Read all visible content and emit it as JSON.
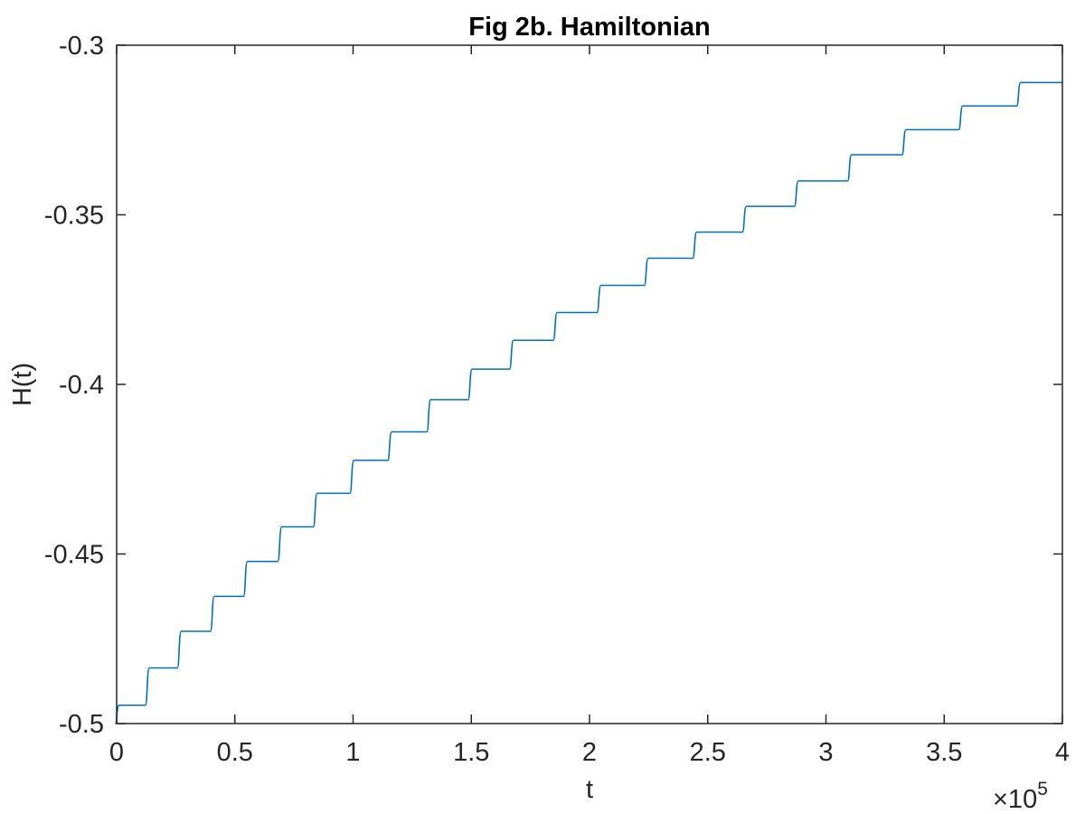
{
  "chart_data": {
    "type": "line",
    "title": "Fig 2b. Hamiltonian",
    "xlabel": "t",
    "ylabel": "H(t)",
    "x_exponent_label": "×10",
    "x_exponent_power": "5",
    "xlim": [
      0,
      4
    ],
    "ylim": [
      -0.5,
      -0.3
    ],
    "x_ticks": [
      0,
      0.5,
      1,
      1.5,
      2,
      2.5,
      3,
      3.5,
      4
    ],
    "x_tick_labels": [
      "0",
      "0.5",
      "1",
      "1.5",
      "2",
      "2.5",
      "3",
      "3.5",
      "4"
    ],
    "y_ticks": [
      -0.5,
      -0.45,
      -0.4,
      -0.35,
      -0.3
    ],
    "y_tick_labels": [
      "-0.5",
      "-0.45",
      "-0.4",
      "-0.35",
      "-0.3"
    ],
    "grid": false,
    "line_color": "#0072BD",
    "series": [
      {
        "name": "",
        "steps": [
          {
            "x": 0.0,
            "y": -0.5
          },
          {
            "x": 0.002,
            "y": -0.4946
          },
          {
            "x": 0.13,
            "y": -0.4836
          },
          {
            "x": 0.265,
            "y": -0.4728
          },
          {
            "x": 0.405,
            "y": -0.4625
          },
          {
            "x": 0.545,
            "y": -0.4522
          },
          {
            "x": 0.69,
            "y": -0.442
          },
          {
            "x": 0.84,
            "y": -0.4321
          },
          {
            "x": 0.995,
            "y": -0.4224
          },
          {
            "x": 1.155,
            "y": -0.414
          },
          {
            "x": 1.32,
            "y": -0.4045
          },
          {
            "x": 1.495,
            "y": -0.3955
          },
          {
            "x": 1.67,
            "y": -0.387
          },
          {
            "x": 1.855,
            "y": -0.3788
          },
          {
            "x": 2.04,
            "y": -0.3708
          },
          {
            "x": 2.24,
            "y": -0.3628
          },
          {
            "x": 2.445,
            "y": -0.3551
          },
          {
            "x": 2.655,
            "y": -0.3475
          },
          {
            "x": 2.875,
            "y": -0.34
          },
          {
            "x": 3.1,
            "y": -0.3323
          },
          {
            "x": 3.33,
            "y": -0.3249
          },
          {
            "x": 3.57,
            "y": -0.3179
          },
          {
            "x": 3.815,
            "y": -0.311
          }
        ],
        "x_end": 4.0
      }
    ]
  }
}
